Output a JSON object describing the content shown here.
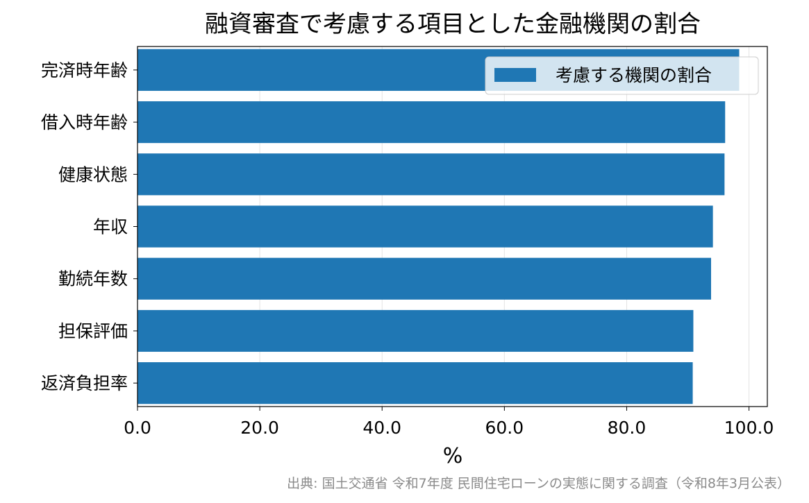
{
  "chart_data": {
    "type": "bar",
    "orientation": "horizontal",
    "title": "融資審査で考慮する項目とした金融機関の割合",
    "xlabel": "%",
    "ylabel": "",
    "xlim": [
      0,
      103
    ],
    "xticks": [
      0,
      20,
      40,
      60,
      80,
      100
    ],
    "xtick_labels": [
      "0.0",
      "20.0",
      "40.0",
      "60.0",
      "80.0",
      "100.0"
    ],
    "grid": "vertical",
    "legend_position": "top-right",
    "categories": [
      "完済時年齢",
      "借入時年齢",
      "健康状態",
      "年収",
      "勤続年数",
      "担保評価",
      "返済負担率"
    ],
    "series": [
      {
        "name": "考慮する機関の割合",
        "color": "#1f77b4",
        "values": [
          98.4,
          96.1,
          96.0,
          94.1,
          93.8,
          90.9,
          90.8
        ]
      }
    ]
  },
  "source": "出典: 国土交通省 令和7年度 民間住宅ローンの実態に関する調査（令和8年3月公表）"
}
